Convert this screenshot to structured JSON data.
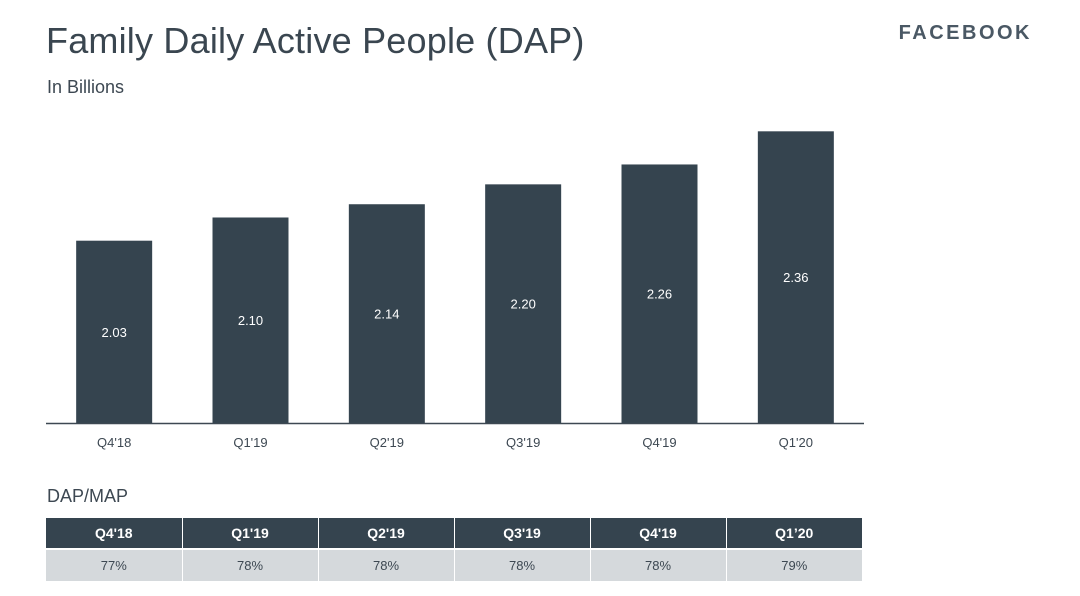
{
  "header": {
    "title": "Family Daily Active People (DAP)",
    "subtitle": "In Billions",
    "brand": "FACEBOOK"
  },
  "chart_data": {
    "type": "bar",
    "title": "Family Daily Active People (DAP)",
    "subtitle": "In Billions",
    "categories": [
      "Q4'18",
      "Q1'19",
      "Q2'19",
      "Q3'19",
      "Q4'19",
      "Q1'20"
    ],
    "values": [
      2.03,
      2.1,
      2.14,
      2.2,
      2.26,
      2.36
    ],
    "value_labels": [
      "2.03",
      "2.10",
      "2.14",
      "2.20",
      "2.26",
      "2.36"
    ],
    "xlabel": "",
    "ylabel": "",
    "ylim": [
      1.48,
      2.37
    ],
    "grid": false,
    "legend": "none",
    "bar_color": "#35444f",
    "label_color": "#ffffff",
    "axis_color": "#3d4852"
  },
  "dap_map": {
    "title": "DAP/MAP",
    "headers": [
      "Q4'18",
      "Q1'19",
      "Q2'19",
      "Q3'19",
      "Q4'19",
      "Q1’20"
    ],
    "values": [
      "77%",
      "78%",
      "78%",
      "78%",
      "78%",
      "79%"
    ],
    "header_bg": "#35444f",
    "row_bg": "#d5d9dc"
  }
}
